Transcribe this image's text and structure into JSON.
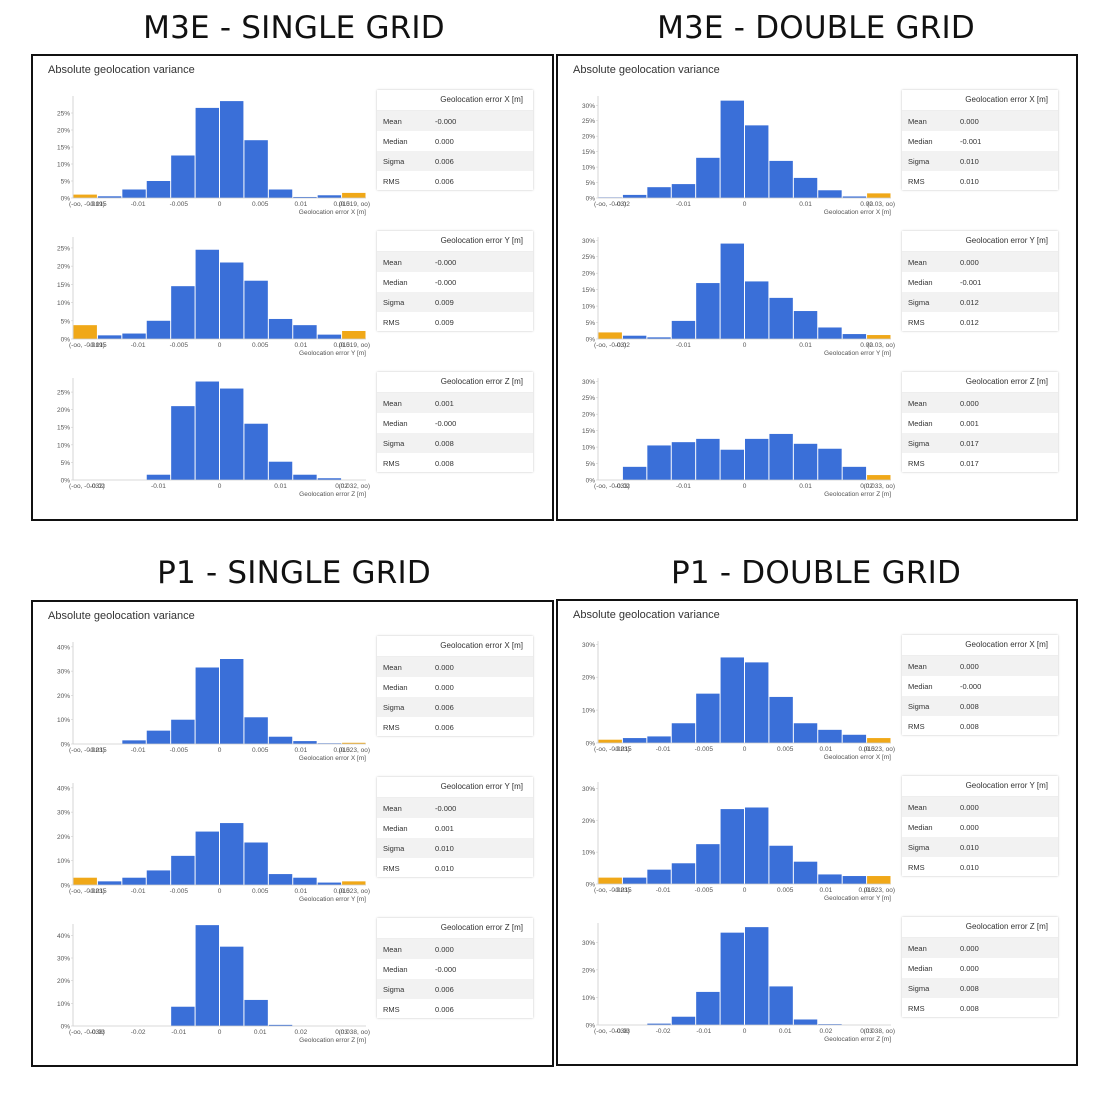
{
  "panels": [
    {
      "title": "M3E - SINGLE GRID",
      "heading": "Absolute geolocation variance",
      "charts": [
        {
          "axis": "X",
          "stats": {
            "mean": "-0.000",
            "median": "0.000",
            "sigma": "0.006",
            "rms": "0.006"
          }
        },
        {
          "axis": "Y",
          "stats": {
            "mean": "-0.000",
            "median": "-0.000",
            "sigma": "0.009",
            "rms": "0.009"
          }
        },
        {
          "axis": "Z",
          "stats": {
            "mean": "0.001",
            "median": "-0.000",
            "sigma": "0.008",
            "rms": "0.008"
          }
        }
      ]
    },
    {
      "title": "M3E - DOUBLE GRID",
      "heading": "Absolute geolocation variance",
      "charts": [
        {
          "axis": "X",
          "stats": {
            "mean": "0.000",
            "median": "-0.001",
            "sigma": "0.010",
            "rms": "0.010"
          }
        },
        {
          "axis": "Y",
          "stats": {
            "mean": "0.000",
            "median": "-0.001",
            "sigma": "0.012",
            "rms": "0.012"
          }
        },
        {
          "axis": "Z",
          "stats": {
            "mean": "0.000",
            "median": "0.001",
            "sigma": "0.017",
            "rms": "0.017"
          }
        }
      ]
    },
    {
      "title": "P1 - SINGLE GRID",
      "heading": "Absolute geolocation variance",
      "charts": [
        {
          "axis": "X",
          "stats": {
            "mean": "0.000",
            "median": "0.000",
            "sigma": "0.006",
            "rms": "0.006"
          }
        },
        {
          "axis": "Y",
          "stats": {
            "mean": "-0.000",
            "median": "0.001",
            "sigma": "0.010",
            "rms": "0.010"
          }
        },
        {
          "axis": "Z",
          "stats": {
            "mean": "0.000",
            "median": "-0.000",
            "sigma": "0.006",
            "rms": "0.006"
          }
        }
      ]
    },
    {
      "title": "P1 - DOUBLE GRID",
      "heading": "Absolute geolocation variance",
      "charts": [
        {
          "axis": "X",
          "stats": {
            "mean": "0.000",
            "median": "-0.000",
            "sigma": "0.008",
            "rms": "0.008"
          }
        },
        {
          "axis": "Y",
          "stats": {
            "mean": "0.000",
            "median": "0.000",
            "sigma": "0.010",
            "rms": "0.010"
          }
        },
        {
          "axis": "Z",
          "stats": {
            "mean": "0.000",
            "median": "0.000",
            "sigma": "0.008",
            "rms": "0.008"
          }
        }
      ]
    }
  ],
  "stat_labels": {
    "mean": "Mean",
    "median": "Median",
    "sigma": "Sigma",
    "rms": "RMS"
  },
  "colors": {
    "bar": "#3a6fd8",
    "outlier": "#f0a818",
    "axis": "#cccccc",
    "text": "#555555"
  },
  "chart_data": [
    {
      "type": "bar",
      "panel": "M3E - SINGLE GRID",
      "title": "Geolocation error X [m]",
      "xlabel": "Geolocation error X [m]",
      "ylim": [
        0,
        30
      ],
      "yticks": [
        "0%",
        "5%",
        "10%",
        "15%",
        "20%",
        "25%"
      ],
      "xticks": [
        "(-oo, -0.019)",
        "-0.015",
        "-0.01",
        "-0.005",
        "0",
        "0.005",
        "0.01",
        "0.015",
        "(0.019, oo)"
      ],
      "values": [
        1.0,
        0.5,
        2.5,
        5,
        12.5,
        26.5,
        28.5,
        17,
        2.5,
        0.3,
        0.8,
        1.5
      ],
      "highlight": [
        0,
        11
      ]
    },
    {
      "type": "bar",
      "panel": "M3E - SINGLE GRID",
      "title": "Geolocation error Y [m]",
      "xlabel": "Geolocation error Y [m]",
      "ylim": [
        0,
        28
      ],
      "yticks": [
        "0%",
        "5%",
        "10%",
        "15%",
        "20%",
        "25%"
      ],
      "xticks": [
        "(-oo, -0.019)",
        "-0.015",
        "-0.01",
        "-0.005",
        "0",
        "0.005",
        "0.01",
        "0.015",
        "(0.019, oo)"
      ],
      "values": [
        3.8,
        1.0,
        1.5,
        5,
        14.5,
        24.5,
        21,
        16,
        5.5,
        3.8,
        1.2,
        2.2
      ],
      "highlight": [
        0,
        11
      ]
    },
    {
      "type": "bar",
      "panel": "M3E - SINGLE GRID",
      "title": "Geolocation error Z [m]",
      "xlabel": "Geolocation error Z [m]",
      "ylim": [
        0,
        29
      ],
      "yticks": [
        "0%",
        "5%",
        "10%",
        "15%",
        "20%",
        "25%"
      ],
      "xticks": [
        "(-oo, -0.032)",
        "-0.02",
        "-0.01",
        "0",
        "0.01",
        "0.02",
        "(0.032, oo)"
      ],
      "values": [
        0,
        0,
        0,
        1.5,
        21,
        28,
        26,
        16,
        5.2,
        1.5,
        0.5,
        0
      ],
      "highlight": []
    },
    {
      "type": "bar",
      "panel": "M3E - DOUBLE GRID",
      "title": "Geolocation error X [m]",
      "xlabel": "Geolocation error X [m]",
      "ylim": [
        0,
        33
      ],
      "yticks": [
        "0%",
        "5%",
        "10%",
        "15%",
        "20%",
        "25%",
        "30%"
      ],
      "xticks": [
        "(-oo, -0.03)",
        "-0.02",
        "-0.01",
        "0",
        "0.01",
        "0.02",
        "(0.03, oo)"
      ],
      "values": [
        0.2,
        1,
        3.5,
        4.5,
        13,
        31.5,
        23.5,
        12,
        6.5,
        2.5,
        0.5,
        1.5
      ],
      "highlight": [
        11
      ]
    },
    {
      "type": "bar",
      "panel": "M3E - DOUBLE GRID",
      "title": "Geolocation error Y [m]",
      "xlabel": "Geolocation error Y [m]",
      "ylim": [
        0,
        31
      ],
      "yticks": [
        "0%",
        "5%",
        "10%",
        "15%",
        "20%",
        "25%",
        "30%"
      ],
      "xticks": [
        "(-oo, -0.03)",
        "-0.02",
        "-0.01",
        "0",
        "0.01",
        "0.02",
        "(0.03, oo)"
      ],
      "values": [
        2,
        1,
        0.5,
        5.5,
        17,
        29,
        17.5,
        12.5,
        8.5,
        3.5,
        1.5,
        1.2
      ],
      "highlight": [
        0,
        11
      ]
    },
    {
      "type": "bar",
      "panel": "M3E - DOUBLE GRID",
      "title": "Geolocation error Z [m]",
      "xlabel": "Geolocation error Z [m]",
      "ylim": [
        0,
        31
      ],
      "yticks": [
        "0%",
        "5%",
        "10%",
        "15%",
        "20%",
        "25%",
        "30%"
      ],
      "xticks": [
        "(-oo, -0.033)",
        "-0.02",
        "-0.01",
        "0",
        "0.01",
        "0.02",
        "(0.033, oo)"
      ],
      "values": [
        0,
        4,
        10.5,
        11.5,
        12.5,
        9.2,
        12.5,
        14,
        11,
        9.5,
        4,
        1.5
      ],
      "highlight": [
        11
      ]
    },
    {
      "type": "bar",
      "panel": "P1 - SINGLE GRID",
      "title": "Geolocation error X [m]",
      "xlabel": "Geolocation error X [m]",
      "ylim": [
        0,
        42
      ],
      "yticks": [
        "0%",
        "10%",
        "20%",
        "30%",
        "40%"
      ],
      "xticks": [
        "(-oo, -0.023)",
        "-0.015",
        "-0.01",
        "-0.005",
        "0",
        "0.005",
        "0.01",
        "0.015",
        "(0.023, oo)"
      ],
      "values": [
        0,
        0,
        1.5,
        5.5,
        10,
        31.5,
        35,
        11,
        3,
        1.2,
        0.3,
        0.5
      ],
      "highlight": [
        11
      ]
    },
    {
      "type": "bar",
      "panel": "P1 - SINGLE GRID",
      "title": "Geolocation error Y [m]",
      "xlabel": "Geolocation error Y [m]",
      "ylim": [
        0,
        42
      ],
      "yticks": [
        "0%",
        "10%",
        "20%",
        "30%",
        "40%"
      ],
      "xticks": [
        "(-oo, -0.023)",
        "-0.015",
        "-0.01",
        "-0.005",
        "0",
        "0.005",
        "0.01",
        "0.015",
        "(0.023, oo)"
      ],
      "values": [
        3,
        1.5,
        3,
        6,
        12,
        22,
        25.5,
        17.5,
        4.5,
        3,
        1,
        1.5
      ],
      "highlight": [
        0,
        11
      ]
    },
    {
      "type": "bar",
      "panel": "P1 - SINGLE GRID",
      "title": "Geolocation error Z [m]",
      "xlabel": "Geolocation error Z [m]",
      "ylim": [
        0,
        45
      ],
      "yticks": [
        "0%",
        "10%",
        "20%",
        "30%",
        "40%"
      ],
      "xticks": [
        "(-oo, -0.038)",
        "-0.03",
        "-0.02",
        "-0.01",
        "0",
        "0.01",
        "0.02",
        "0.03",
        "(0.038, oo)"
      ],
      "values": [
        0,
        0,
        0,
        0,
        8.5,
        44.5,
        35,
        11.5,
        0.5,
        0,
        0,
        0
      ],
      "highlight": []
    },
    {
      "type": "bar",
      "panel": "P1 - DOUBLE GRID",
      "title": "Geolocation error X [m]",
      "xlabel": "Geolocation error X [m]",
      "ylim": [
        0,
        31
      ],
      "yticks": [
        "0%",
        "10%",
        "20%",
        "30%"
      ],
      "xticks": [
        "(-oo, -0.023)",
        "-0.015",
        "-0.01",
        "-0.005",
        "0",
        "0.005",
        "0.01",
        "0.015",
        "(0.023, oo)"
      ],
      "values": [
        1,
        1.5,
        2,
        6,
        15,
        26,
        24.5,
        14,
        6,
        4,
        2.5,
        1.5
      ],
      "highlight": [
        0,
        11
      ]
    },
    {
      "type": "bar",
      "panel": "P1 - DOUBLE GRID",
      "title": "Geolocation error Y [m]",
      "xlabel": "Geolocation error Y [m]",
      "ylim": [
        0,
        32
      ],
      "yticks": [
        "0%",
        "10%",
        "20%",
        "30%"
      ],
      "xticks": [
        "(-oo, -0.023)",
        "-0.015",
        "-0.01",
        "-0.005",
        "0",
        "0.005",
        "0.01",
        "0.015",
        "(0.023, oo)"
      ],
      "values": [
        2,
        2,
        4.5,
        6.5,
        12.5,
        23.5,
        24,
        12,
        7,
        3,
        2.5,
        2.5
      ],
      "highlight": [
        0,
        11
      ]
    },
    {
      "type": "bar",
      "panel": "P1 - DOUBLE GRID",
      "title": "Geolocation error Z [m]",
      "xlabel": "Geolocation error Z [m]",
      "ylim": [
        0,
        37
      ],
      "yticks": [
        "0%",
        "10%",
        "20%",
        "30%"
      ],
      "xticks": [
        "(-oo, -0.038)",
        "-0.03",
        "-0.02",
        "-0.01",
        "0",
        "0.01",
        "0.02",
        "0.03",
        "(0.038, oo)"
      ],
      "values": [
        0,
        0,
        0.5,
        3,
        12,
        33.5,
        35.5,
        14,
        2,
        0.3,
        0,
        0
      ],
      "highlight": []
    }
  ]
}
